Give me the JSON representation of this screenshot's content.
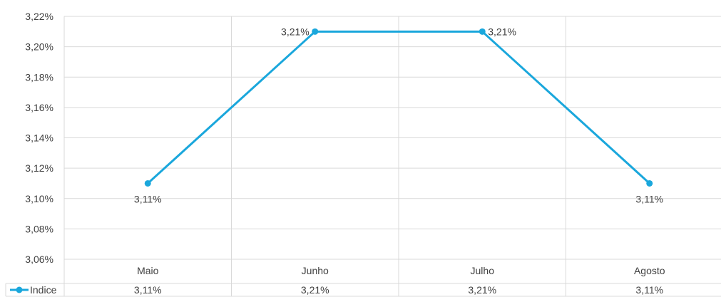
{
  "chart_data": {
    "type": "line",
    "categories": [
      "Maio",
      "Junho",
      "Julho",
      "Agosto"
    ],
    "series": [
      {
        "name": "Indice",
        "values": [
          3.11,
          3.21,
          3.21,
          3.11
        ],
        "color": "#1aa7dc"
      }
    ],
    "data_labels": [
      "3,11%",
      "3,21%",
      "3,21%",
      "3,11%"
    ],
    "y_ticks": [
      "3,06%",
      "3,08%",
      "3,10%",
      "3,12%",
      "3,14%",
      "3,16%",
      "3,18%",
      "3,20%",
      "3,22%"
    ],
    "ylim": [
      3.06,
      3.22
    ],
    "grid": true,
    "legend": "data-table-left",
    "table_values": [
      "3,11%",
      "3,21%",
      "3,21%",
      "3,11%"
    ],
    "title": "",
    "xlabel": "",
    "ylabel": ""
  }
}
